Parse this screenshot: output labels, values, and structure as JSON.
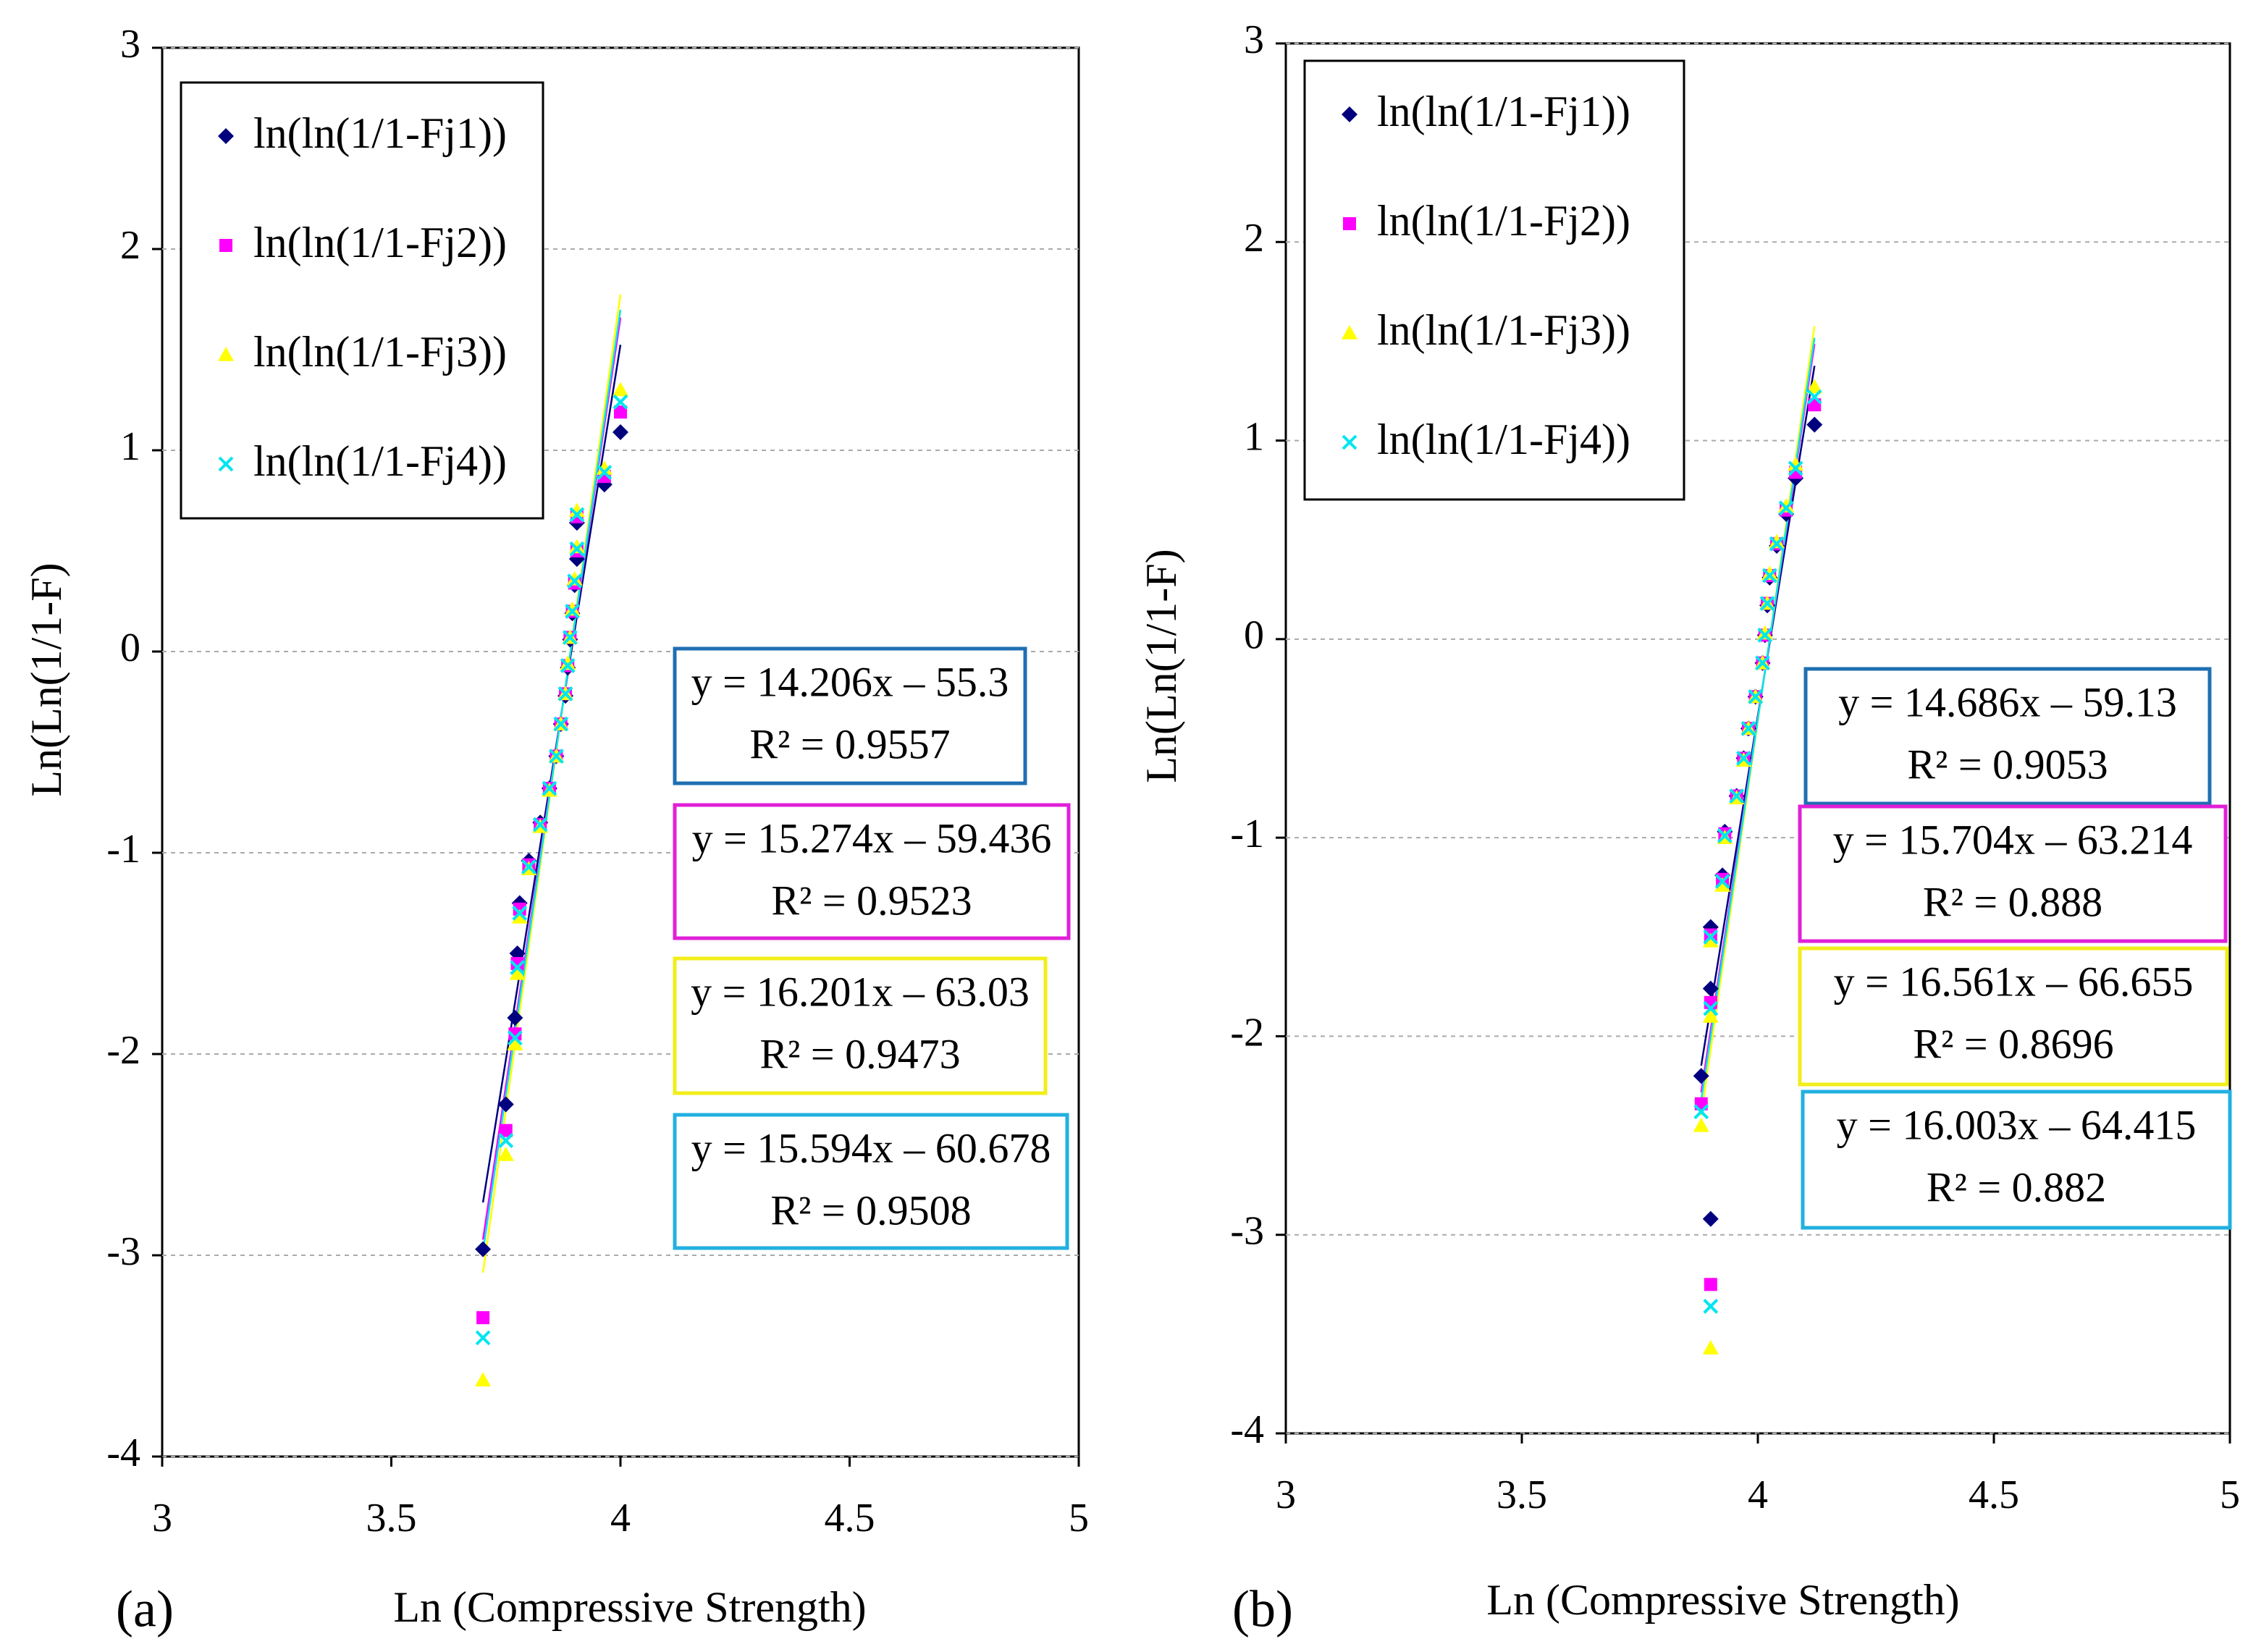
{
  "chart_data": [
    {
      "type": "scatter",
      "label": "(a)",
      "xlabel": "Ln (Compressive Strength)",
      "ylabel": "Ln(Ln(1/1-F)",
      "xlim": [
        3,
        5
      ],
      "ylim": [
        -4,
        3
      ],
      "xticks": [
        3,
        3.5,
        4,
        4.5,
        5
      ],
      "yticks": [
        -4,
        -3,
        -2,
        -1,
        0,
        1,
        2,
        3
      ],
      "grid": true,
      "series": [
        {
          "name": "ln(ln(1/1-Fj1))",
          "color": "#00007f",
          "marker": "diamond",
          "x": [
            3.7,
            3.75,
            3.77,
            3.775,
            3.78,
            3.8,
            3.825,
            3.845,
            3.86,
            3.87,
            3.88,
            3.885,
            3.89,
            3.895,
            3.9,
            3.905,
            3.905,
            3.965,
            4.0
          ],
          "values": [
            -2.97,
            -2.25,
            -1.82,
            -1.5,
            -1.25,
            -1.04,
            -0.85,
            -0.68,
            -0.52,
            -0.36,
            -0.22,
            -0.08,
            0.06,
            0.19,
            0.33,
            0.46,
            0.64,
            0.83,
            1.09
          ],
          "trendline": {
            "slope": 14.206,
            "intercept": -55.3,
            "equation": "y = 14.206x – 55.3",
            "r2": "R² = 0.9557",
            "box_color": "#1f6fb2"
          }
        },
        {
          "name": "ln(ln(1/1-Fj2))",
          "color": "#ff00ff",
          "marker": "square",
          "x": [
            3.7,
            3.75,
            3.77,
            3.775,
            3.78,
            3.8,
            3.825,
            3.845,
            3.86,
            3.87,
            3.88,
            3.885,
            3.89,
            3.895,
            3.9,
            3.905,
            3.905,
            3.965,
            4.0
          ],
          "values": [
            -3.31,
            -2.38,
            -1.9,
            -1.55,
            -1.28,
            -1.06,
            -0.86,
            -0.68,
            -0.52,
            -0.36,
            -0.21,
            -0.07,
            0.07,
            0.2,
            0.34,
            0.5,
            0.67,
            0.87,
            1.19
          ],
          "trendline": {
            "slope": 15.274,
            "intercept": -59.436,
            "equation": "y = 15.274x – 59.436",
            "r2": "R² = 0.9523",
            "box_color": "#e020d8"
          }
        },
        {
          "name": "ln(ln(1/1-Fj3))",
          "color": "#ffff00",
          "marker": "triangle",
          "x": [
            3.7,
            3.75,
            3.77,
            3.775,
            3.78,
            3.8,
            3.825,
            3.845,
            3.86,
            3.87,
            3.88,
            3.885,
            3.89,
            3.895,
            3.9,
            3.905,
            3.905,
            3.965,
            4.0
          ],
          "values": [
            -3.62,
            -2.5,
            -1.95,
            -1.6,
            -1.32,
            -1.08,
            -0.87,
            -0.69,
            -0.52,
            -0.36,
            -0.21,
            -0.06,
            0.07,
            0.21,
            0.36,
            0.52,
            0.7,
            0.91,
            1.3
          ],
          "trendline": {
            "slope": 16.201,
            "intercept": -63.03,
            "equation": "y = 16.201x – 63.03",
            "r2": "R² = 0.9473",
            "box_color": "#f2ee1a"
          }
        },
        {
          "name": "ln(ln(1/1-Fj4))",
          "color": "#00e5f0",
          "marker": "x",
          "x": [
            3.7,
            3.75,
            3.77,
            3.775,
            3.78,
            3.8,
            3.825,
            3.845,
            3.86,
            3.87,
            3.88,
            3.885,
            3.89,
            3.895,
            3.9,
            3.905,
            3.905,
            3.965,
            4.0
          ],
          "values": [
            -3.41,
            -2.43,
            -1.92,
            -1.57,
            -1.3,
            -1.07,
            -0.86,
            -0.68,
            -0.52,
            -0.36,
            -0.21,
            -0.07,
            0.07,
            0.2,
            0.35,
            0.51,
            0.68,
            0.89,
            1.24
          ],
          "trendline": {
            "slope": 15.594,
            "intercept": -60.678,
            "equation": "y = 15.594x – 60.678",
            "r2": "R² = 0.9508",
            "box_color": "#22b0e0"
          }
        }
      ]
    },
    {
      "type": "scatter",
      "label": "(b)",
      "xlabel": "Ln (Compressive Strength)",
      "ylabel": "Ln(Ln(1/1-F)",
      "xlim": [
        3,
        5
      ],
      "ylim": [
        -4,
        3
      ],
      "xticks": [
        3,
        3.5,
        4,
        4.5,
        5
      ],
      "yticks": [
        -4,
        -3,
        -2,
        -1,
        0,
        1,
        2,
        3
      ],
      "grid": true,
      "series": [
        {
          "name": "ln(ln(1/1-Fj1))",
          "color": "#00007f",
          "marker": "diamond",
          "x": [
            3.88,
            3.9,
            3.9,
            3.9,
            3.925,
            3.93,
            3.955,
            3.97,
            3.98,
            3.995,
            4.01,
            4.015,
            4.02,
            4.025,
            4.04,
            4.06,
            4.08,
            4.12
          ],
          "values": [
            -2.2,
            -2.92,
            -1.76,
            -1.45,
            -1.19,
            -0.97,
            -0.79,
            -0.6,
            -0.45,
            -0.29,
            -0.12,
            0.02,
            0.17,
            0.31,
            0.47,
            0.63,
            0.81,
            1.08
          ],
          "trendline": {
            "slope": 14.686,
            "intercept": -59.13,
            "equation": "y = 14.686x – 59.13",
            "r2": "R² = 0.9053",
            "box_color": "#1f6fb2"
          }
        },
        {
          "name": "ln(ln(1/1-Fj2))",
          "color": "#ff00ff",
          "marker": "square",
          "x": [
            3.88,
            3.9,
            3.9,
            3.9,
            3.925,
            3.93,
            3.955,
            3.97,
            3.98,
            3.995,
            4.01,
            4.015,
            4.02,
            4.025,
            4.04,
            4.06,
            4.08,
            4.12
          ],
          "values": [
            -2.34,
            -3.25,
            -1.83,
            -1.49,
            -1.21,
            -0.98,
            -0.79,
            -0.6,
            -0.45,
            -0.29,
            -0.12,
            0.02,
            0.18,
            0.32,
            0.48,
            0.65,
            0.84,
            1.18
          ],
          "trendline": {
            "slope": 15.704,
            "intercept": -63.214,
            "equation": "y = 15.704x – 63.214",
            "r2": "R² = 0.888",
            "box_color": "#e020d8"
          }
        },
        {
          "name": "ln(ln(1/1-Fj3))",
          "color": "#ffff00",
          "marker": "triangle",
          "x": [
            3.88,
            3.9,
            3.9,
            3.9,
            3.925,
            3.93,
            3.955,
            3.97,
            3.98,
            3.995,
            4.01,
            4.015,
            4.02,
            4.025,
            4.04,
            4.06,
            4.08,
            4.12
          ],
          "values": [
            -2.45,
            -3.57,
            -1.9,
            -1.52,
            -1.24,
            -1.0,
            -0.8,
            -0.61,
            -0.45,
            -0.29,
            -0.12,
            0.03,
            0.18,
            0.33,
            0.49,
            0.67,
            0.88,
            1.27
          ],
          "trendline": {
            "slope": 16.561,
            "intercept": -66.655,
            "equation": "y = 16.561x – 66.655",
            "r2": "R² = 0.8696",
            "box_color": "#f2ee1a"
          }
        },
        {
          "name": "ln(ln(1/1-Fj4))",
          "color": "#00e5f0",
          "marker": "x",
          "x": [
            3.88,
            3.9,
            3.9,
            3.9,
            3.925,
            3.93,
            3.955,
            3.97,
            3.98,
            3.995,
            4.01,
            4.015,
            4.02,
            4.025,
            4.04,
            4.06,
            4.08,
            4.12
          ],
          "values": [
            -2.38,
            -3.36,
            -1.86,
            -1.5,
            -1.22,
            -0.99,
            -0.79,
            -0.6,
            -0.45,
            -0.29,
            -0.12,
            0.02,
            0.18,
            0.32,
            0.48,
            0.66,
            0.86,
            1.22
          ],
          "trendline": {
            "slope": 16.003,
            "intercept": -64.415,
            "equation": "y = 16.003x – 64.415",
            "r2": "R² = 0.882",
            "box_color": "#22b0e0"
          }
        }
      ]
    }
  ]
}
